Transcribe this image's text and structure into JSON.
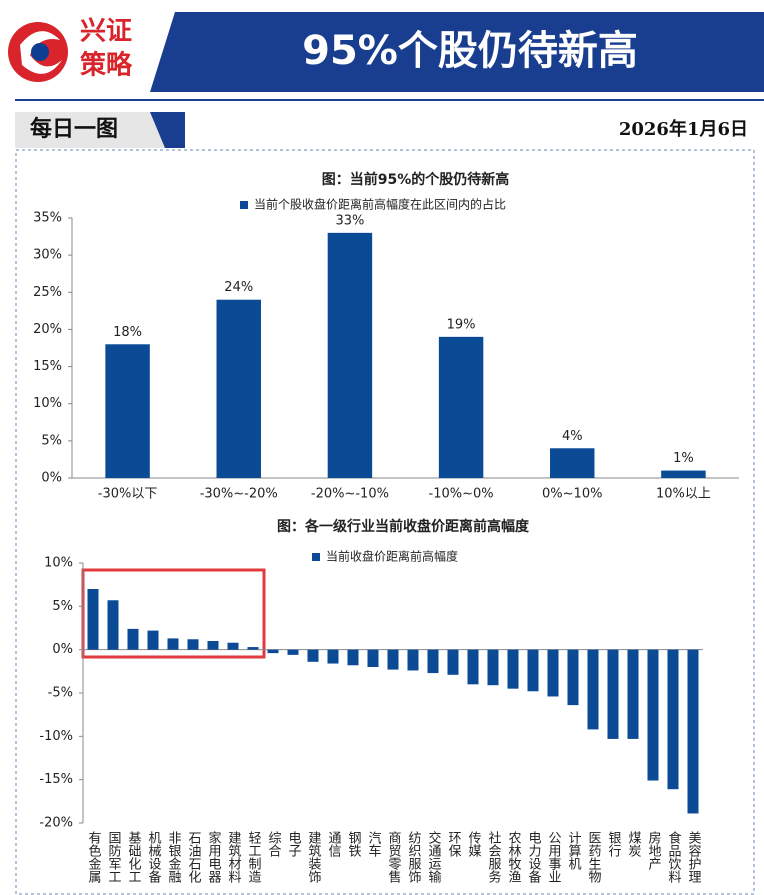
{
  "header": {
    "logo_top": "兴证",
    "logo_bottom": "策略",
    "title": "95%个股仍待新高",
    "section": "每日一图",
    "date": "2026年1月6日"
  },
  "chart_data": [
    {
      "type": "bar",
      "title": "图：当前95%的个股仍待新高",
      "series": [
        {
          "name": "当前个股收盘价距离前高幅度在此区间内的占比",
          "color": "#0b4a95",
          "values": [
            18,
            24,
            33,
            19,
            4,
            1
          ],
          "value_labels": [
            "18%",
            "24%",
            "33%",
            "19%",
            "4%",
            "1%"
          ]
        }
      ],
      "categories": [
        "-30%以下",
        "-30%~-20%",
        "-20%~-10%",
        "-10%~0%",
        "0%~10%",
        "10%以上"
      ],
      "ylim": [
        0,
        35
      ],
      "yticks": [
        {
          "value": 0,
          "label": "0%"
        },
        {
          "value": 5,
          "label": "5%"
        },
        {
          "value": 10,
          "label": "10%"
        },
        {
          "value": 15,
          "label": "15%"
        },
        {
          "value": 20,
          "label": "20%"
        },
        {
          "value": 25,
          "label": "25%"
        },
        {
          "value": 30,
          "label": "30%"
        },
        {
          "value": 35,
          "label": "35%"
        }
      ]
    },
    {
      "type": "bar",
      "title": "图：各一级行业当前收盘价距离前高幅度",
      "series": [
        {
          "name": "当前收盘价距离前高幅度",
          "color": "#0b4a95",
          "values": [
            7.0,
            5.7,
            2.4,
            2.2,
            1.3,
            1.2,
            1.0,
            0.8,
            0.3,
            -0.4,
            -0.6,
            -1.4,
            -1.6,
            -1.8,
            -2.0,
            -2.3,
            -2.4,
            -2.7,
            -2.9,
            -4.0,
            -4.1,
            -4.5,
            -4.8,
            -5.4,
            -6.4,
            -9.2,
            -10.3,
            -10.3,
            -15.1,
            -16.1,
            -18.9
          ]
        }
      ],
      "categories": [
        "有色金属",
        "国防军工",
        "基础化工",
        "机械设备",
        "非银金融",
        "石油石化",
        "家用电器",
        "建筑材料",
        "轻工制造",
        "综合",
        "电子",
        "建筑装饰",
        "通信",
        "钢铁",
        "汽车",
        "商贸零售",
        "纺织服饰",
        "交通运输",
        "环保",
        "传媒",
        "社会服务",
        "农林牧渔",
        "电力设备",
        "公用事业",
        "计算机",
        "医药生物",
        "银行",
        "煤炭",
        "房地产",
        "食品饮料",
        "美容护理"
      ],
      "ylim": [
        -20,
        10
      ],
      "yticks": [
        {
          "value": -20,
          "label": "-20%"
        },
        {
          "value": -15,
          "label": "-15%"
        },
        {
          "value": -10,
          "label": "-10%"
        },
        {
          "value": -5,
          "label": "-5%"
        },
        {
          "value": 0,
          "label": "0%"
        },
        {
          "value": 5,
          "label": "5%"
        },
        {
          "value": 10,
          "label": "10%"
        }
      ]
    }
  ]
}
